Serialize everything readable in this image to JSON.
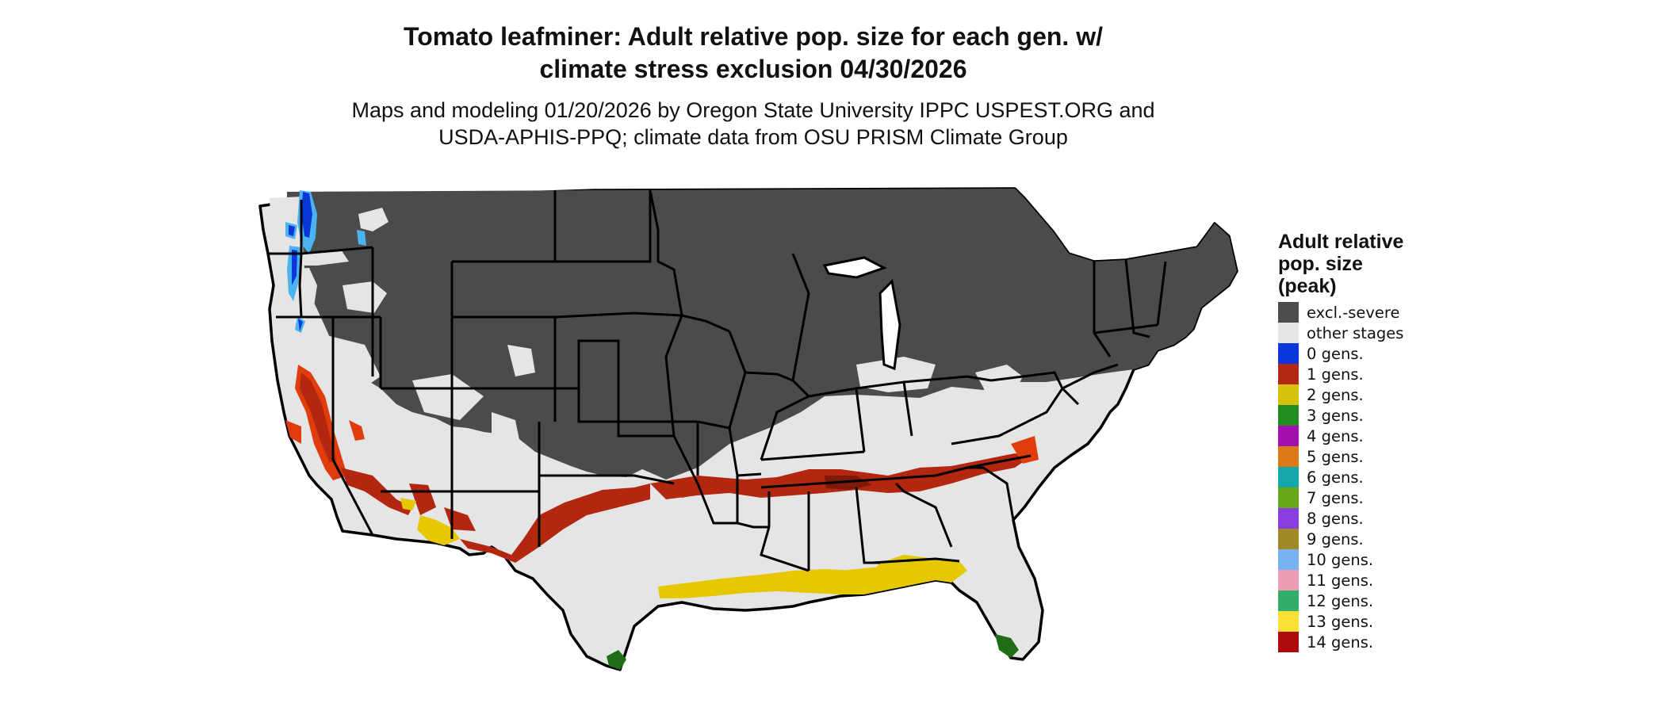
{
  "title": {
    "line1": "Tomato leafminer: Adult relative pop. size for each gen. w/",
    "line2": "climate stress exclusion 04/30/2026"
  },
  "subtitle": {
    "line1": "Maps and modeling 01/20/2026 by Oregon State University IPPC USPEST.ORG and",
    "line2": "USDA-APHIS-PPQ; climate data from OSU PRISM Climate Group"
  },
  "map": {
    "region": "Conterminous United States",
    "colors": {
      "excluded": "#4b4b4b",
      "other": "#e5e5e5",
      "gen1": "#b3260f",
      "gen1_bright": "#e03c0c",
      "gen2": "#e6c800",
      "gen3": "#1f6e17",
      "gen0": "#0b36d8",
      "light_blue": "#4ab3f0",
      "border": "#000000"
    }
  },
  "legend": {
    "title": [
      "Adult relative",
      "pop. size",
      "(peak)"
    ],
    "items": [
      {
        "label": "excl.-severe",
        "color": "#4d4d4d"
      },
      {
        "label": "other stages",
        "color": "#e6e6e6"
      },
      {
        "label": "0 gens.",
        "color": "#0a37d9"
      },
      {
        "label": "1 gens.",
        "color": "#b42714"
      },
      {
        "label": "2 gens.",
        "color": "#d6c20a"
      },
      {
        "label": "3 gens.",
        "color": "#228b22"
      },
      {
        "label": "4 gens.",
        "color": "#a410b0"
      },
      {
        "label": "5 gens.",
        "color": "#de7a16"
      },
      {
        "label": "6 gens.",
        "color": "#12a8aa"
      },
      {
        "label": "7 gens.",
        "color": "#66a81a"
      },
      {
        "label": "8 gens.",
        "color": "#8a3ee0"
      },
      {
        "label": "9 gens.",
        "color": "#a08a28"
      },
      {
        "label": "10 gens.",
        "color": "#78b2f0"
      },
      {
        "label": "11 gens.",
        "color": "#ee9cb3"
      },
      {
        "label": "12 gens.",
        "color": "#33ad6a"
      },
      {
        "label": "13 gens.",
        "color": "#fbdf34"
      },
      {
        "label": "14 gens.",
        "color": "#ad0a0a"
      }
    ]
  }
}
